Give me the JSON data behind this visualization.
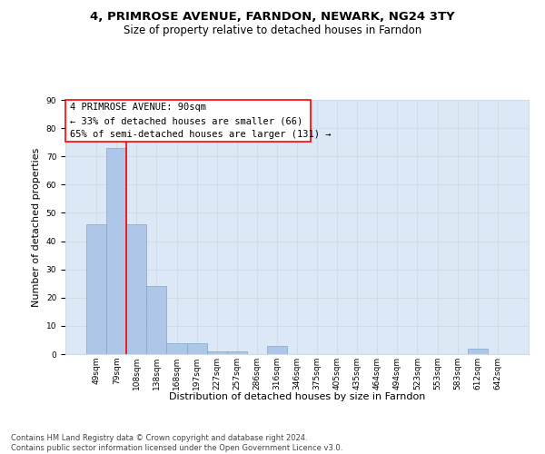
{
  "title1": "4, PRIMROSE AVENUE, FARNDON, NEWARK, NG24 3TY",
  "title2": "Size of property relative to detached houses in Farndon",
  "xlabel": "Distribution of detached houses by size in Farndon",
  "ylabel": "Number of detached properties",
  "categories": [
    "49sqm",
    "79sqm",
    "108sqm",
    "138sqm",
    "168sqm",
    "197sqm",
    "227sqm",
    "257sqm",
    "286sqm",
    "316sqm",
    "346sqm",
    "375sqm",
    "405sqm",
    "435sqm",
    "464sqm",
    "494sqm",
    "523sqm",
    "553sqm",
    "583sqm",
    "612sqm",
    "642sqm"
  ],
  "values": [
    46,
    73,
    46,
    24,
    4,
    4,
    1,
    1,
    0,
    3,
    0,
    0,
    0,
    0,
    0,
    0,
    0,
    0,
    0,
    2,
    0
  ],
  "bar_color": "#aec6e8",
  "bar_edge_color": "#7aaac8",
  "vline_x": 1.5,
  "vline_color": "red",
  "annotation_box_text": "4 PRIMROSE AVENUE: 90sqm\n← 33% of detached houses are smaller (66)\n65% of semi-detached houses are larger (131) →",
  "box_edge_color": "red",
  "box_face_color": "white",
  "ylim": [
    0,
    90
  ],
  "yticks": [
    0,
    10,
    20,
    30,
    40,
    50,
    60,
    70,
    80,
    90
  ],
  "grid_color": "#d0dce8",
  "background_color": "#dce8f5",
  "footnote": "Contains HM Land Registry data © Crown copyright and database right 2024.\nContains public sector information licensed under the Open Government Licence v3.0.",
  "title1_fontsize": 9.5,
  "title2_fontsize": 8.5,
  "xlabel_fontsize": 8,
  "ylabel_fontsize": 8,
  "tick_fontsize": 6.5,
  "annotation_fontsize": 7.5,
  "footnote_fontsize": 6
}
